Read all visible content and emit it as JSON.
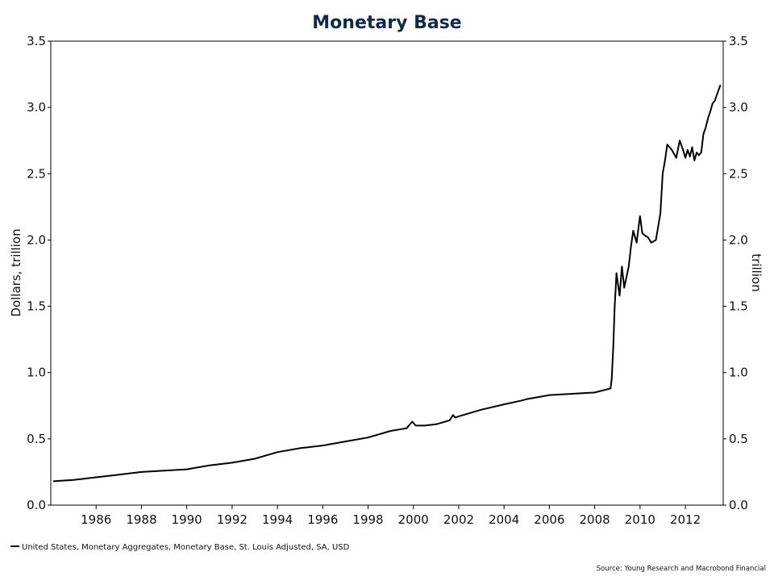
{
  "chart_data": {
    "type": "line",
    "title": "Monetary Base",
    "ylabel_left": "Dollars, trillion",
    "ylabel_right": "trillion",
    "ylim": [
      0,
      3.5
    ],
    "y_ticks": [
      "0.0",
      "0.5",
      "1.0",
      "1.5",
      "2.0",
      "2.5",
      "3.0",
      "3.5"
    ],
    "xlim": [
      1984,
      2013.67
    ],
    "x_ticks": [
      "1986",
      "1988",
      "1990",
      "1992",
      "1994",
      "1996",
      "1998",
      "2000",
      "2002",
      "2004",
      "2006",
      "2008",
      "2010",
      "2012"
    ],
    "grid": false,
    "series": [
      {
        "name": "United States, Monetary Aggregates, Monetary Base, St. Louis Adjusted, SA, USD",
        "color": "#000000",
        "x": [
          1984.1,
          1985,
          1986,
          1987,
          1988,
          1989,
          1990,
          1991,
          1992,
          1993,
          1994,
          1995,
          1996,
          1997,
          1998,
          1999,
          1999.7,
          1999.95,
          2000.1,
          2000.5,
          2001,
          2001.6,
          2001.75,
          2001.85,
          2002,
          2003,
          2004,
          2004.8,
          2005,
          2006,
          2007,
          2008,
          2008.7,
          2008.75,
          2008.82,
          2008.88,
          2008.92,
          2008.96,
          2009.0,
          2009.1,
          2009.2,
          2009.3,
          2009.4,
          2009.5,
          2009.6,
          2009.7,
          2009.85,
          2010.0,
          2010.1,
          2010.25,
          2010.35,
          2010.5,
          2010.7,
          2010.9,
          2011.0,
          2011.1,
          2011.2,
          2011.3,
          2011.4,
          2011.5,
          2011.6,
          2011.75,
          2011.9,
          2012.0,
          2012.1,
          2012.2,
          2012.3,
          2012.4,
          2012.5,
          2012.6,
          2012.7,
          2012.8,
          2012.9,
          2013.0,
          2013.1,
          2013.2,
          2013.3,
          2013.4,
          2013.55
        ],
        "values": [
          0.18,
          0.19,
          0.21,
          0.23,
          0.25,
          0.26,
          0.27,
          0.3,
          0.32,
          0.35,
          0.4,
          0.43,
          0.45,
          0.48,
          0.51,
          0.56,
          0.58,
          0.63,
          0.6,
          0.6,
          0.61,
          0.64,
          0.68,
          0.66,
          0.67,
          0.72,
          0.76,
          0.79,
          0.8,
          0.83,
          0.84,
          0.85,
          0.88,
          0.95,
          1.2,
          1.5,
          1.62,
          1.75,
          1.7,
          1.58,
          1.8,
          1.64,
          1.72,
          1.8,
          1.95,
          2.07,
          1.98,
          2.18,
          2.05,
          2.03,
          2.02,
          1.98,
          2.0,
          2.2,
          2.5,
          2.6,
          2.72,
          2.7,
          2.68,
          2.65,
          2.62,
          2.75,
          2.68,
          2.62,
          2.68,
          2.63,
          2.7,
          2.6,
          2.66,
          2.64,
          2.66,
          2.8,
          2.85,
          2.92,
          2.97,
          3.03,
          3.05,
          3.1,
          3.17
        ]
      }
    ]
  },
  "legend": {
    "label": "United States, Monetary Aggregates, Monetary Base, St. Louis Adjusted, SA, USD"
  },
  "source": "Source: Young Research and Macrobond Financial"
}
